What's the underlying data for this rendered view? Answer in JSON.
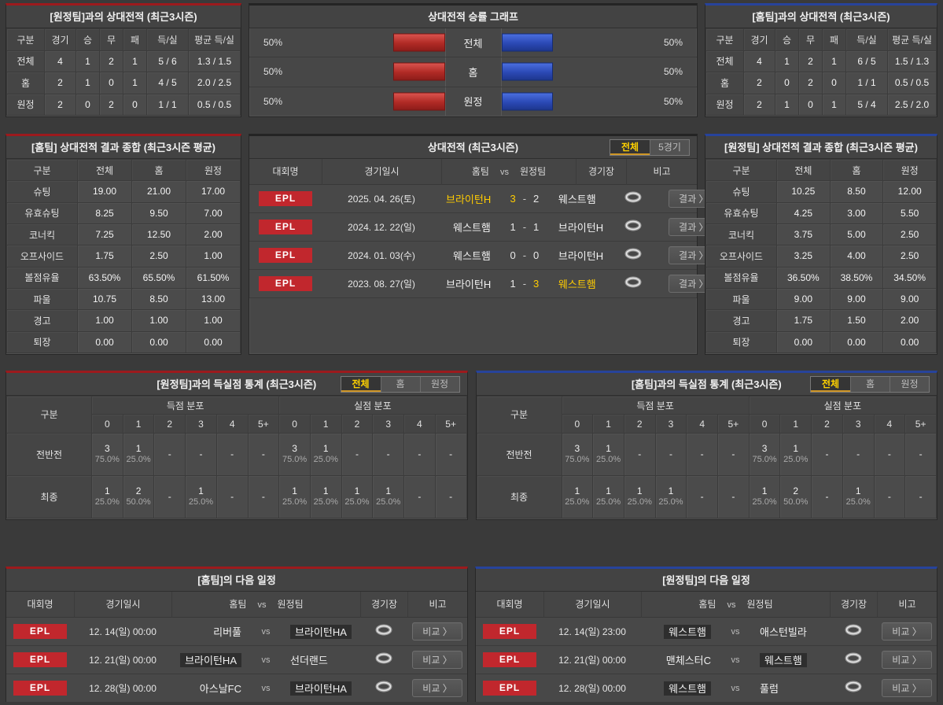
{
  "colors": {
    "home_accent": "#9c1a1d",
    "away_accent": "#27439b",
    "bar_red": "#b02a25",
    "bar_blue": "#2b49b5",
    "highlight": "#ffcc00",
    "badge_red": "#c1272d"
  },
  "h2h_away": {
    "title": "[원정팀]과의 상대전적 (최근3시즌)",
    "headers": [
      "구분",
      "경기",
      "승",
      "무",
      "패",
      "득/실",
      "평균 득/실"
    ],
    "rows": [
      {
        "label": "전체",
        "c": [
          "4",
          "1",
          "2",
          "1",
          "5 / 6",
          "1.3 / 1.5"
        ]
      },
      {
        "label": "홈",
        "c": [
          "2",
          "1",
          "0",
          "1",
          "4 / 5",
          "2.0 / 2.5"
        ]
      },
      {
        "label": "원정",
        "c": [
          "2",
          "0",
          "2",
          "0",
          "1 / 1",
          "0.5 / 0.5"
        ]
      }
    ]
  },
  "winrate_graph": {
    "title": "상대전적 승률 그래프",
    "rows": [
      {
        "label": "전체",
        "home_pct_label": "50%",
        "away_pct_label": "50%",
        "home_pct": 50,
        "away_pct": 50
      },
      {
        "label": "홈",
        "home_pct_label": "50%",
        "away_pct_label": "50%",
        "home_pct": 50,
        "away_pct": 50
      },
      {
        "label": "원정",
        "home_pct_label": "50%",
        "away_pct_label": "50%",
        "home_pct": 50,
        "away_pct": 50
      }
    ]
  },
  "h2h_home": {
    "title": "[홈팀]과의 상대전적 (최근3시즌)",
    "headers": [
      "구분",
      "경기",
      "승",
      "무",
      "패",
      "득/실",
      "평균 득/실"
    ],
    "rows": [
      {
        "label": "전체",
        "c": [
          "4",
          "1",
          "2",
          "1",
          "6 / 5",
          "1.5 / 1.3"
        ]
      },
      {
        "label": "홈",
        "c": [
          "2",
          "0",
          "2",
          "0",
          "1 / 1",
          "0.5 / 0.5"
        ]
      },
      {
        "label": "원정",
        "c": [
          "2",
          "1",
          "0",
          "1",
          "5 / 4",
          "2.5 / 2.0"
        ]
      }
    ]
  },
  "summary_home": {
    "title": "[홈팀] 상대전적 결과 종합 (최근3시즌 평균)",
    "headers": [
      "구분",
      "전체",
      "홈",
      "원정"
    ],
    "rows": [
      {
        "label": "슈팅",
        "c": [
          "19.00",
          "21.00",
          "17.00"
        ]
      },
      {
        "label": "유효슈팅",
        "c": [
          "8.25",
          "9.50",
          "7.00"
        ]
      },
      {
        "label": "코너킥",
        "c": [
          "7.25",
          "12.50",
          "2.00"
        ]
      },
      {
        "label": "오프사이드",
        "c": [
          "1.75",
          "2.50",
          "1.00"
        ]
      },
      {
        "label": "볼점유율",
        "c": [
          "63.50%",
          "65.50%",
          "61.50%"
        ]
      },
      {
        "label": "파울",
        "c": [
          "10.75",
          "8.50",
          "13.00"
        ]
      },
      {
        "label": "경고",
        "c": [
          "1.00",
          "1.00",
          "1.00"
        ]
      },
      {
        "label": "퇴장",
        "c": [
          "0.00",
          "0.00",
          "0.00"
        ]
      }
    ]
  },
  "h2h_list": {
    "title": "상대전적 (최근3시즌)",
    "tabs": [
      "전체",
      "5경기"
    ],
    "headers": {
      "league": "대회명",
      "datetime": "경기일시",
      "home": "홈팀",
      "vs": "vs",
      "away": "원정팀",
      "stadium": "경기장",
      "note": "비고"
    },
    "result_btn": "결과 〉",
    "rows": [
      {
        "league": "EPL",
        "date": "2025. 04. 26(토)",
        "home": "브라이턴HA",
        "hs": "3",
        "as": "2",
        "away": "웨스트햄"
      },
      {
        "league": "EPL",
        "date": "2024. 12. 22(일)",
        "home": "웨스트햄",
        "hs": "1",
        "as": "1",
        "away": "브라이턴HA"
      },
      {
        "league": "EPL",
        "date": "2024. 01. 03(수)",
        "home": "웨스트햄",
        "hs": "0",
        "as": "0",
        "away": "브라이턴HA"
      },
      {
        "league": "EPL",
        "date": "2023. 08. 27(일)",
        "home": "브라이턴HA",
        "hs": "1",
        "as": "3",
        "away": "웨스트햄"
      }
    ]
  },
  "summary_away": {
    "title": "[원정팀] 상대전적 결과 종합 (최근3시즌 평균)",
    "headers": [
      "구분",
      "전체",
      "홈",
      "원정"
    ],
    "rows": [
      {
        "label": "슈팅",
        "c": [
          "10.25",
          "8.50",
          "12.00"
        ]
      },
      {
        "label": "유효슈팅",
        "c": [
          "4.25",
          "3.00",
          "5.50"
        ]
      },
      {
        "label": "코너킥",
        "c": [
          "3.75",
          "5.00",
          "2.50"
        ]
      },
      {
        "label": "오프사이드",
        "c": [
          "3.25",
          "4.00",
          "2.50"
        ]
      },
      {
        "label": "볼점유율",
        "c": [
          "36.50%",
          "38.50%",
          "34.50%"
        ]
      },
      {
        "label": "파울",
        "c": [
          "9.00",
          "9.00",
          "9.00"
        ]
      },
      {
        "label": "경고",
        "c": [
          "1.75",
          "1.50",
          "2.00"
        ]
      },
      {
        "label": "퇴장",
        "c": [
          "0.00",
          "0.00",
          "0.00"
        ]
      }
    ]
  },
  "goal_stats_home": {
    "title": "[원정팀]과의 득실점 통계 (최근3시즌)",
    "tabs": [
      "전체",
      "홈",
      "원정"
    ],
    "corner": "구분",
    "scored": "득점 분포",
    "conceded": "실점 분포",
    "bins": [
      "0",
      "1",
      "2",
      "3",
      "4",
      "5+"
    ],
    "rows": [
      {
        "label": "전반전",
        "s": [
          {
            "n": "3",
            "p": "75.0%"
          },
          {
            "n": "1",
            "p": "25.0%"
          },
          {
            "n": "-",
            "p": ""
          },
          {
            "n": "-",
            "p": ""
          },
          {
            "n": "-",
            "p": ""
          },
          {
            "n": "-",
            "p": ""
          }
        ],
        "a": [
          {
            "n": "3",
            "p": "75.0%"
          },
          {
            "n": "1",
            "p": "25.0%"
          },
          {
            "n": "-",
            "p": ""
          },
          {
            "n": "-",
            "p": ""
          },
          {
            "n": "-",
            "p": ""
          },
          {
            "n": "-",
            "p": ""
          }
        ]
      },
      {
        "label": "최종",
        "s": [
          {
            "n": "1",
            "p": "25.0%"
          },
          {
            "n": "2",
            "p": "50.0%"
          },
          {
            "n": "-",
            "p": ""
          },
          {
            "n": "1",
            "p": "25.0%"
          },
          {
            "n": "-",
            "p": ""
          },
          {
            "n": "-",
            "p": ""
          }
        ],
        "a": [
          {
            "n": "1",
            "p": "25.0%"
          },
          {
            "n": "1",
            "p": "25.0%"
          },
          {
            "n": "1",
            "p": "25.0%"
          },
          {
            "n": "1",
            "p": "25.0%"
          },
          {
            "n": "-",
            "p": ""
          },
          {
            "n": "-",
            "p": ""
          }
        ]
      }
    ]
  },
  "goal_stats_away": {
    "title": "[홈팀]과의 득실점 통계 (최근3시즌)",
    "tabs": [
      "전체",
      "홈",
      "원정"
    ],
    "corner": "구분",
    "scored": "득점 분포",
    "conceded": "실점 분포",
    "bins": [
      "0",
      "1",
      "2",
      "3",
      "4",
      "5+"
    ],
    "rows": [
      {
        "label": "전반전",
        "s": [
          {
            "n": "3",
            "p": "75.0%"
          },
          {
            "n": "1",
            "p": "25.0%"
          },
          {
            "n": "-",
            "p": ""
          },
          {
            "n": "-",
            "p": ""
          },
          {
            "n": "-",
            "p": ""
          },
          {
            "n": "-",
            "p": ""
          }
        ],
        "a": [
          {
            "n": "3",
            "p": "75.0%"
          },
          {
            "n": "1",
            "p": "25.0%"
          },
          {
            "n": "-",
            "p": ""
          },
          {
            "n": "-",
            "p": ""
          },
          {
            "n": "-",
            "p": ""
          },
          {
            "n": "-",
            "p": ""
          }
        ]
      },
      {
        "label": "최종",
        "s": [
          {
            "n": "1",
            "p": "25.0%"
          },
          {
            "n": "1",
            "p": "25.0%"
          },
          {
            "n": "1",
            "p": "25.0%"
          },
          {
            "n": "1",
            "p": "25.0%"
          },
          {
            "n": "-",
            "p": ""
          },
          {
            "n": "-",
            "p": ""
          }
        ],
        "a": [
          {
            "n": "1",
            "p": "25.0%"
          },
          {
            "n": "2",
            "p": "50.0%"
          },
          {
            "n": "-",
            "p": ""
          },
          {
            "n": "1",
            "p": "25.0%"
          },
          {
            "n": "-",
            "p": ""
          },
          {
            "n": "-",
            "p": ""
          }
        ]
      }
    ]
  },
  "schedule_home": {
    "title": "[홈팀]의 다음 일정",
    "headers": {
      "league": "대회명",
      "datetime": "경기일시",
      "home": "홈팀",
      "vs": "vs",
      "away": "원정팀",
      "stadium": "경기장",
      "note": "비고"
    },
    "compare_btn": "비교 〉",
    "rows": [
      {
        "league": "EPL",
        "date": "12. 14(일) 00:00",
        "home": "리버풀",
        "away": "브라이턴HA"
      },
      {
        "league": "EPL",
        "date": "12. 21(일) 00:00",
        "home": "브라이턴HA",
        "away": "선더랜드"
      },
      {
        "league": "EPL",
        "date": "12. 28(일) 00:00",
        "home": "아스날FC",
        "away": "브라이턴HA"
      }
    ]
  },
  "schedule_away": {
    "title": "[원정팀]의 다음 일정",
    "headers": {
      "league": "대회명",
      "datetime": "경기일시",
      "home": "홈팀",
      "vs": "vs",
      "away": "원정팀",
      "stadium": "경기장",
      "note": "비고"
    },
    "compare_btn": "비교 〉",
    "rows": [
      {
        "league": "EPL",
        "date": "12. 14(일) 23:00",
        "home": "웨스트햄",
        "away": "애스턴빌라"
      },
      {
        "league": "EPL",
        "date": "12. 21(일) 00:00",
        "home": "맨체스터C",
        "away": "웨스트햄"
      },
      {
        "league": "EPL",
        "date": "12. 28(일) 00:00",
        "home": "웨스트햄",
        "away": "풀럼"
      }
    ]
  }
}
